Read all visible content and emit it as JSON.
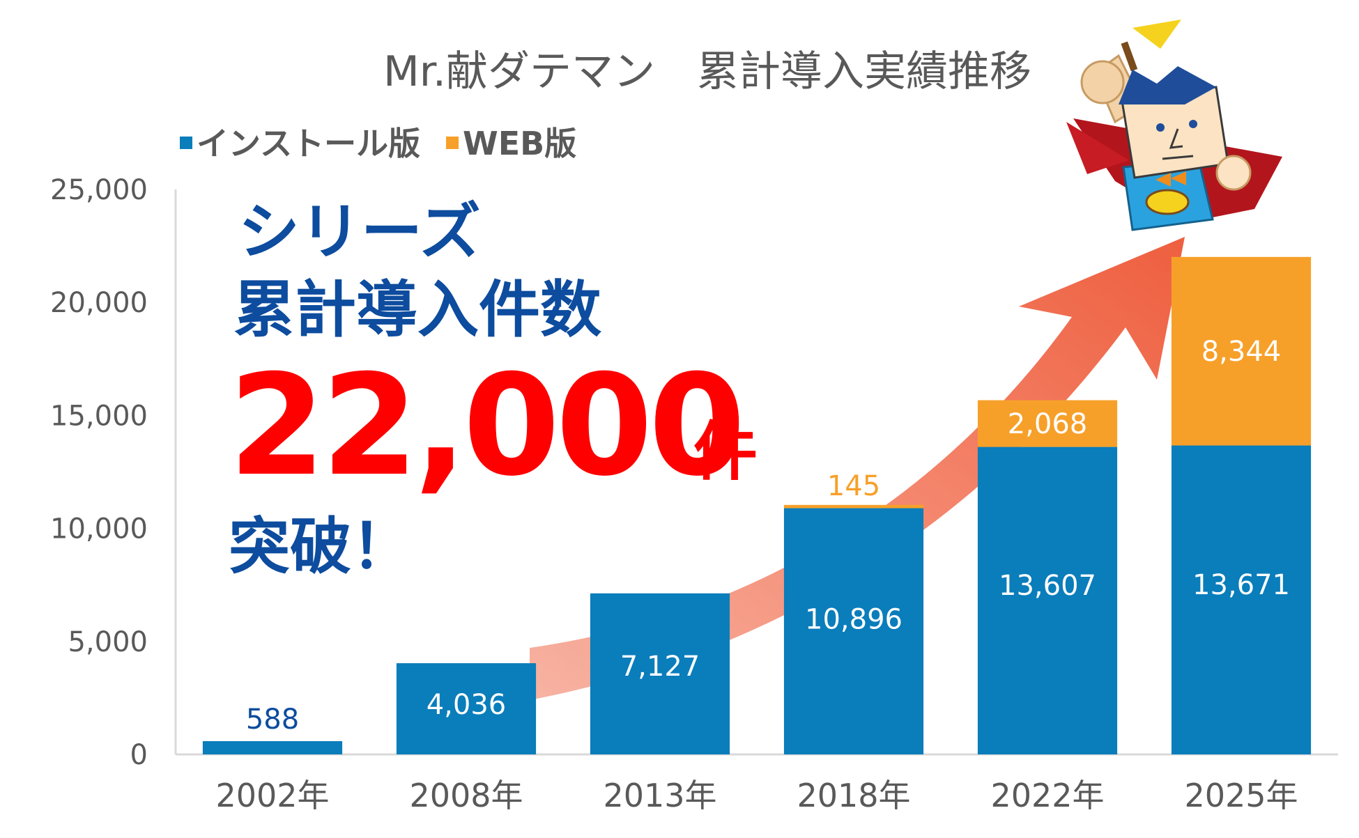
{
  "chart_data": {
    "type": "bar",
    "stacked": true,
    "title": "Mr.献ダテマン　累計導入実績推移",
    "categories": [
      "2002年",
      "2008年",
      "2013年",
      "2018年",
      "2022年",
      "2025年"
    ],
    "series": [
      {
        "name": "インストール版",
        "color": "#0a7dbb",
        "values": [
          588,
          4036,
          7127,
          10896,
          13607,
          13671
        ]
      },
      {
        "name": "WEB版",
        "color": "#f6a02a",
        "values": [
          0,
          0,
          0,
          145,
          2068,
          8344
        ]
      }
    ],
    "ylim": [
      0,
      25000
    ],
    "yticks": [
      "0",
      "5,000",
      "10,000",
      "15,000",
      "20,000",
      "25,000"
    ],
    "ytick_values": [
      0,
      5000,
      10000,
      15000,
      20000,
      25000
    ],
    "legend_position": "top-left",
    "grid": false,
    "data_labels": {
      "install": [
        "588",
        "4,036",
        "7,127",
        "10,896",
        "13,607",
        "13,671"
      ],
      "web": [
        "",
        "",
        "",
        "145",
        "2,068",
        "8,344"
      ]
    }
  },
  "headline": {
    "line1": "シリーズ",
    "line2": "累計導入件数",
    "number": "22,000",
    "unit": "件",
    "line4": "突破！"
  },
  "colors": {
    "arrow": "#f26a4f",
    "headline_blue": "#0d4c9e",
    "headline_red": "#ff0000",
    "axis_text": "#595959"
  },
  "mascot_icon": "superhero-mascot-icon"
}
